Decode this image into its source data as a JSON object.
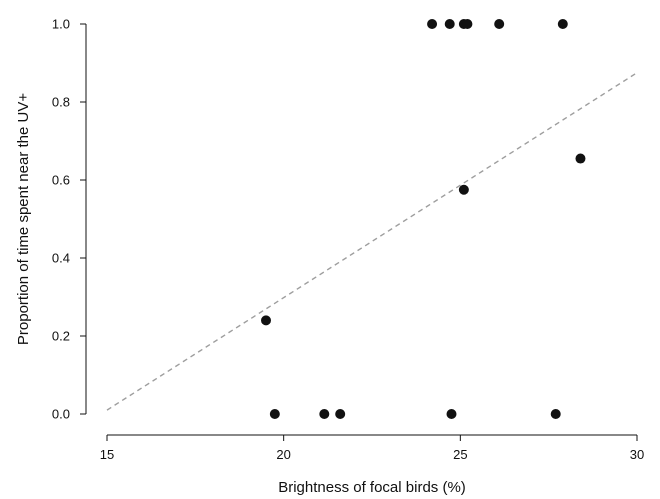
{
  "chart_data": {
    "type": "scatter",
    "title": "",
    "xlabel": "Brightness of focal birds (%)",
    "ylabel": "Proportion of time spent near the UV+",
    "xlim": [
      15,
      30
    ],
    "ylim": [
      0.0,
      1.0
    ],
    "x_ticks": [
      "15",
      "20",
      "25",
      "30"
    ],
    "y_ticks": [
      "0.0",
      "0.2",
      "0.4",
      "0.6",
      "0.8",
      "1.0"
    ],
    "grid": false,
    "point_color": "#111111",
    "trendline_color": "#9e9e9e",
    "points": [
      {
        "x": 24.2,
        "y": 1.0
      },
      {
        "x": 24.7,
        "y": 1.0
      },
      {
        "x": 25.1,
        "y": 1.0
      },
      {
        "x": 25.2,
        "y": 1.0
      },
      {
        "x": 26.1,
        "y": 1.0
      },
      {
        "x": 27.9,
        "y": 1.0
      },
      {
        "x": 28.4,
        "y": 0.655
      },
      {
        "x": 25.1,
        "y": 0.575
      },
      {
        "x": 19.5,
        "y": 0.24
      },
      {
        "x": 19.75,
        "y": 0.0
      },
      {
        "x": 21.15,
        "y": 0.0
      },
      {
        "x": 21.6,
        "y": 0.0
      },
      {
        "x": 24.75,
        "y": 0.0
      },
      {
        "x": 27.7,
        "y": 0.0
      }
    ],
    "trendline": {
      "x": [
        15,
        30
      ],
      "y": [
        0.01,
        0.875
      ]
    }
  }
}
